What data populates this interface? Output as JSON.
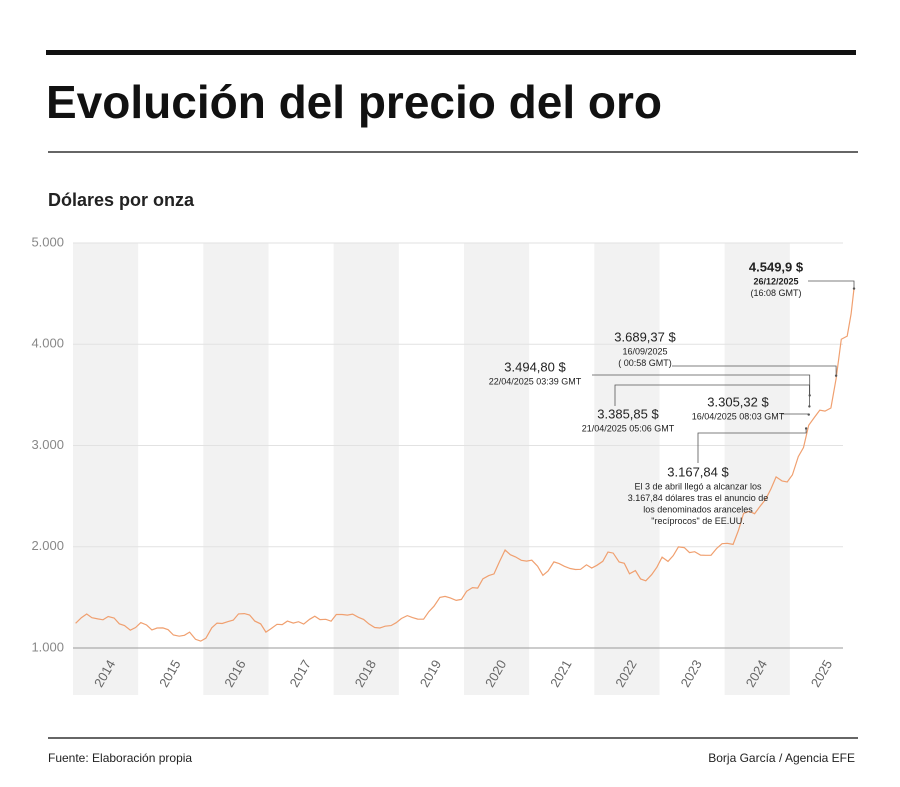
{
  "chart_data": {
    "type": "line",
    "title": "Evolución del precio del oro",
    "subtitle": "Dólares por onza",
    "source": "Fuente: Elaboración propia",
    "credit": "Borja García / Agencia EFE",
    "xlim": [
      2014,
      2026
    ],
    "ylim": [
      1000,
      5000
    ],
    "yticks": [
      {
        "value": 1000,
        "label": "1.000"
      },
      {
        "value": 2000,
        "label": "2.000"
      },
      {
        "value": 3000,
        "label": "3.000"
      },
      {
        "value": 4000,
        "label": "4.000"
      },
      {
        "value": 5000,
        "label": "5.000"
      }
    ],
    "xticks": [
      {
        "value": 2014.5,
        "label": "2014"
      },
      {
        "value": 2015.5,
        "label": "2015"
      },
      {
        "value": 2016.5,
        "label": "2016"
      },
      {
        "value": 2017.5,
        "label": "2017"
      },
      {
        "value": 2018.5,
        "label": "2018"
      },
      {
        "value": 2019.5,
        "label": "2019"
      },
      {
        "value": 2020.5,
        "label": "2020"
      },
      {
        "value": 2021.5,
        "label": "2021"
      },
      {
        "value": 2022.5,
        "label": "2022"
      },
      {
        "value": 2023.5,
        "label": "2023"
      },
      {
        "value": 2024.5,
        "label": "2024"
      },
      {
        "value": 2025.5,
        "label": "2025"
      }
    ],
    "grid": true,
    "color": "#f0a070",
    "x": [
      2014.04,
      2014.13,
      2014.21,
      2014.29,
      2014.38,
      2014.46,
      2014.54,
      2014.63,
      2014.71,
      2014.79,
      2014.88,
      2014.96,
      2015.04,
      2015.13,
      2015.21,
      2015.29,
      2015.38,
      2015.46,
      2015.54,
      2015.63,
      2015.71,
      2015.79,
      2015.88,
      2015.96,
      2016.04,
      2016.13,
      2016.21,
      2016.29,
      2016.38,
      2016.46,
      2016.54,
      2016.63,
      2016.71,
      2016.79,
      2016.88,
      2016.96,
      2017.04,
      2017.13,
      2017.21,
      2017.29,
      2017.38,
      2017.46,
      2017.54,
      2017.63,
      2017.71,
      2017.79,
      2017.88,
      2017.96,
      2018.04,
      2018.13,
      2018.21,
      2018.29,
      2018.38,
      2018.46,
      2018.54,
      2018.63,
      2018.71,
      2018.79,
      2018.88,
      2018.96,
      2019.04,
      2019.13,
      2019.21,
      2019.29,
      2019.38,
      2019.46,
      2019.54,
      2019.63,
      2019.71,
      2019.79,
      2019.88,
      2019.96,
      2020.04,
      2020.13,
      2020.21,
      2020.29,
      2020.38,
      2020.46,
      2020.54,
      2020.63,
      2020.71,
      2020.79,
      2020.88,
      2020.96,
      2021.04,
      2021.13,
      2021.21,
      2021.29,
      2021.38,
      2021.46,
      2021.54,
      2021.63,
      2021.71,
      2021.79,
      2021.88,
      2021.96,
      2022.04,
      2022.13,
      2022.21,
      2022.29,
      2022.38,
      2022.46,
      2022.54,
      2022.63,
      2022.71,
      2022.79,
      2022.88,
      2022.96,
      2023.04,
      2023.13,
      2023.21,
      2023.29,
      2023.38,
      2023.46,
      2023.54,
      2023.63,
      2023.71,
      2023.79,
      2023.88,
      2023.96,
      2024.04,
      2024.13,
      2024.21,
      2024.29,
      2024.38,
      2024.46,
      2024.54,
      2024.63,
      2024.71,
      2024.79,
      2024.88,
      2024.96,
      2025.04,
      2025.13,
      2025.21,
      2025.29,
      2025.38,
      2025.46,
      2025.54,
      2025.63,
      2025.71,
      2025.79,
      2025.88,
      2025.94,
      2025.985
    ],
    "values": [
      1244,
      1300,
      1336,
      1299,
      1287,
      1279,
      1311,
      1296,
      1239,
      1222,
      1176,
      1202,
      1251,
      1227,
      1179,
      1198,
      1199,
      1181,
      1128,
      1117,
      1125,
      1157,
      1086,
      1068,
      1097,
      1200,
      1246,
      1242,
      1261,
      1276,
      1337,
      1340,
      1326,
      1266,
      1238,
      1157,
      1192,
      1234,
      1231,
      1266,
      1246,
      1260,
      1236,
      1283,
      1314,
      1280,
      1283,
      1265,
      1331,
      1331,
      1325,
      1335,
      1303,
      1282,
      1238,
      1202,
      1198,
      1215,
      1221,
      1250,
      1291,
      1320,
      1300,
      1285,
      1284,
      1359,
      1413,
      1500,
      1510,
      1495,
      1470,
      1480,
      1560,
      1597,
      1592,
      1683,
      1715,
      1732,
      1847,
      1968,
      1921,
      1900,
      1866,
      1858,
      1867,
      1808,
      1718,
      1760,
      1850,
      1834,
      1807,
      1785,
      1775,
      1777,
      1822,
      1790,
      1817,
      1856,
      1948,
      1937,
      1849,
      1837,
      1733,
      1764,
      1681,
      1664,
      1725,
      1798,
      1898,
      1855,
      1912,
      1999,
      1992,
      1942,
      1951,
      1918,
      1916,
      1916,
      1985,
      2030,
      2034,
      2023,
      2160,
      2330,
      2350,
      2326,
      2398,
      2470,
      2570,
      2690,
      2650,
      2640,
      2710,
      2890,
      2980,
      3200,
      3280,
      3350,
      3340,
      3370,
      3660,
      4050,
      4080,
      4300,
      4549.9
    ],
    "annotations": [
      {
        "x": 2025.985,
        "value": 4549.9,
        "label": "4.549,9 $",
        "lines": [
          "26/12/2025",
          "(16:08 GMT)"
        ]
      },
      {
        "x": 2025.71,
        "value": 3689.37,
        "label": "3.689,37 $",
        "lines": [
          "16/09/2025",
          "( 00:58 GMT)"
        ]
      },
      {
        "x": 2025.305,
        "value": 3494.8,
        "label": "3.494,80 $",
        "lines": [
          "22/04/2025 03:39 GMT"
        ]
      },
      {
        "x": 2025.3,
        "value": 3385.85,
        "label": "3.385,85 $",
        "lines": [
          "21/04/2025 05:06 GMT"
        ]
      },
      {
        "x": 2025.29,
        "value": 3305.32,
        "label": "3.305,32 $",
        "lines": [
          "16/04/2025 08:03 GMT"
        ]
      },
      {
        "x": 2025.25,
        "value": 3167.84,
        "label": "3.167,84 $",
        "lines": [
          "El 3 de abril llegó a alcanzar los",
          "3.167,84 dólares tras el anuncio de",
          "los denominados aranceles",
          "\"recíprocos\" de EE.UU."
        ]
      }
    ]
  }
}
